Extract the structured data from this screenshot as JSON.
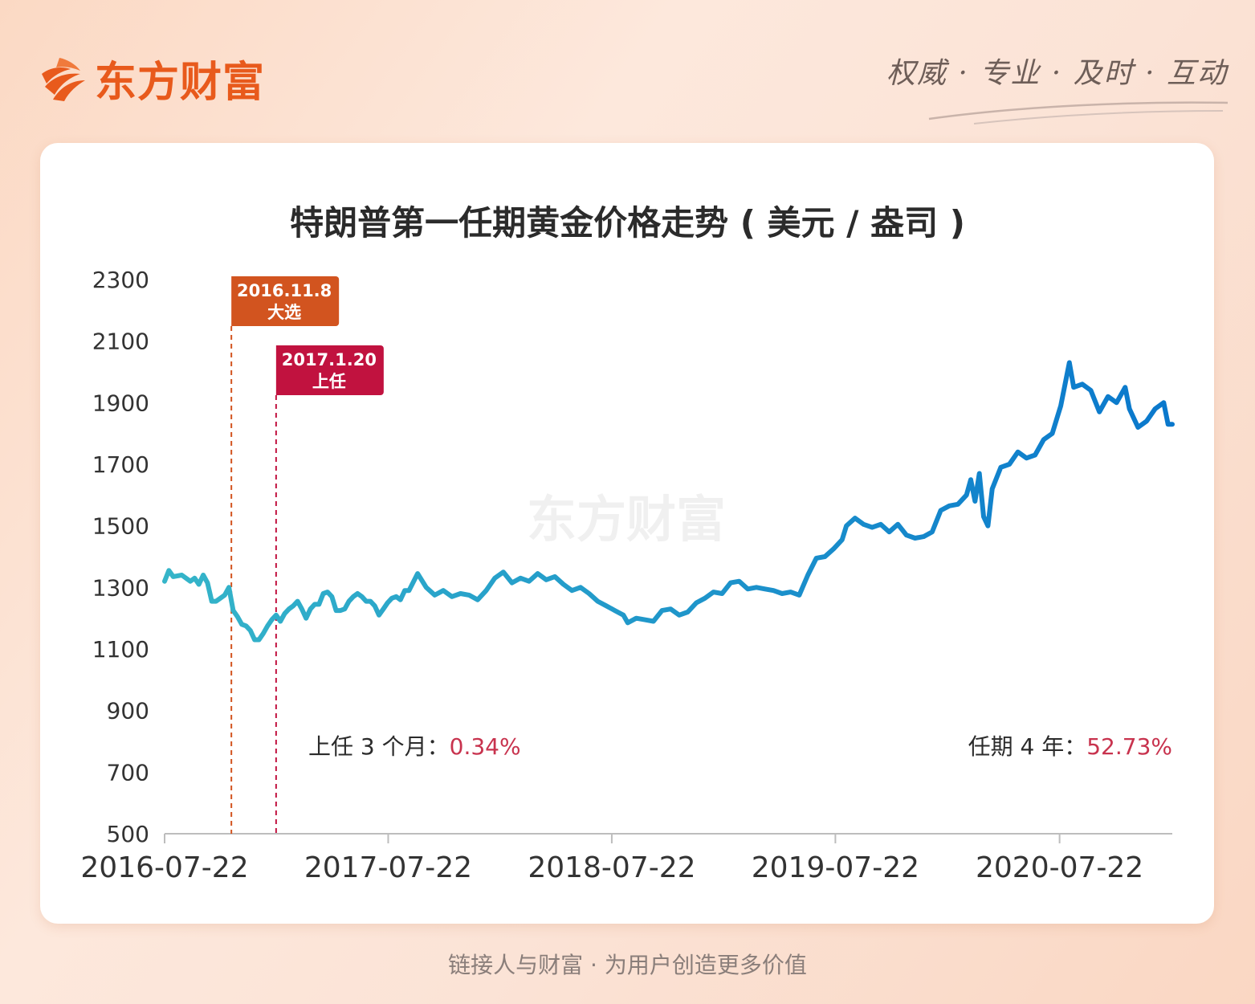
{
  "header": {
    "logo_text": "东方财富",
    "slogan": "权威 · 专业 · 及时 · 互动"
  },
  "footer": {
    "text": "链接人与财富 · 为用户创造更多价值"
  },
  "watermark": "东方财富",
  "colors": {
    "accent": "#e85a1c",
    "line_start": "#35b5c9",
    "line_end": "#0a78cc",
    "election_flag": "#d2541f",
    "inauguration_flag": "#c1123f",
    "highlight_text": "#c8334e"
  },
  "chart_data": {
    "type": "line",
    "title": "特朗普第一任期黄金价格走势 ( 美元 / 盎司 )",
    "xlabel": "",
    "ylabel": "",
    "ylim": [
      500,
      2300
    ],
    "yticks": [
      2300,
      2100,
      1900,
      1700,
      1500,
      1300,
      1100,
      900,
      700,
      500
    ],
    "x_tick_labels": [
      "2016-07-22",
      "2017-07-22",
      "2018-07-22",
      "2019-07-22",
      "2020-07-22"
    ],
    "x_tick_dates": [
      "2016-07-22",
      "2017-07-22",
      "2018-07-22",
      "2019-07-22",
      "2020-07-22"
    ],
    "x_range": [
      "2016-07-22",
      "2021-01-22"
    ],
    "grid": false,
    "series": [
      {
        "x": [
          "2016-07-22",
          "2016-07-29",
          "2016-08-05",
          "2016-08-19",
          "2016-09-02",
          "2016-09-09",
          "2016-09-16",
          "2016-09-23",
          "2016-09-30",
          "2016-10-07",
          "2016-10-14",
          "2016-10-21",
          "2016-10-28",
          "2016-11-04",
          "2016-11-11",
          "2016-11-18",
          "2016-11-25",
          "2016-12-02",
          "2016-12-09",
          "2016-12-16",
          "2016-12-23",
          "2016-12-30",
          "2017-01-06",
          "2017-01-13",
          "2017-01-20",
          "2017-01-27",
          "2017-02-03",
          "2017-02-10",
          "2017-02-17",
          "2017-02-24",
          "2017-03-03",
          "2017-03-10",
          "2017-03-17",
          "2017-03-24",
          "2017-03-31",
          "2017-04-07",
          "2017-04-14",
          "2017-04-21",
          "2017-04-28",
          "2017-05-05",
          "2017-05-12",
          "2017-05-19",
          "2017-05-26",
          "2017-06-02",
          "2017-06-09",
          "2017-06-16",
          "2017-06-23",
          "2017-06-30",
          "2017-07-07",
          "2017-07-14",
          "2017-07-21",
          "2017-07-28",
          "2017-08-04",
          "2017-08-11",
          "2017-08-18",
          "2017-08-25",
          "2017-09-08",
          "2017-09-22",
          "2017-10-06",
          "2017-10-20",
          "2017-11-03",
          "2017-11-17",
          "2017-12-01",
          "2017-12-15",
          "2017-12-29",
          "2018-01-12",
          "2018-01-26",
          "2018-02-09",
          "2018-02-23",
          "2018-03-09",
          "2018-03-23",
          "2018-04-06",
          "2018-04-20",
          "2018-05-04",
          "2018-05-18",
          "2018-06-01",
          "2018-06-15",
          "2018-06-29",
          "2018-07-13",
          "2018-07-27",
          "2018-08-10",
          "2018-08-17",
          "2018-08-31",
          "2018-09-14",
          "2018-09-28",
          "2018-10-12",
          "2018-10-26",
          "2018-11-09",
          "2018-11-23",
          "2018-12-07",
          "2018-12-21",
          "2019-01-04",
          "2019-01-18",
          "2019-02-01",
          "2019-02-15",
          "2019-03-01",
          "2019-03-15",
          "2019-03-29",
          "2019-04-12",
          "2019-04-26",
          "2019-05-10",
          "2019-05-24",
          "2019-06-07",
          "2019-06-21",
          "2019-07-05",
          "2019-07-19",
          "2019-08-02",
          "2019-08-09",
          "2019-08-23",
          "2019-09-06",
          "2019-09-20",
          "2019-10-04",
          "2019-10-18",
          "2019-11-01",
          "2019-11-15",
          "2019-11-29",
          "2019-12-13",
          "2019-12-27",
          "2020-01-10",
          "2020-01-24",
          "2020-02-07",
          "2020-02-21",
          "2020-02-28",
          "2020-03-06",
          "2020-03-13",
          "2020-03-20",
          "2020-03-27",
          "2020-04-03",
          "2020-04-17",
          "2020-05-01",
          "2020-05-15",
          "2020-05-29",
          "2020-06-12",
          "2020-06-26",
          "2020-07-10",
          "2020-07-24",
          "2020-08-07",
          "2020-08-14",
          "2020-08-28",
          "2020-09-11",
          "2020-09-25",
          "2020-10-09",
          "2020-10-23",
          "2020-11-06",
          "2020-11-13",
          "2020-11-27",
          "2020-12-11",
          "2020-12-25",
          "2021-01-08",
          "2021-01-15",
          "2021-01-22"
        ],
        "y": [
          1320,
          1355,
          1335,
          1340,
          1320,
          1330,
          1310,
          1340,
          1315,
          1255,
          1255,
          1265,
          1275,
          1300,
          1225,
          1205,
          1180,
          1175,
          1160,
          1130,
          1130,
          1150,
          1175,
          1195,
          1210,
          1190,
          1215,
          1230,
          1240,
          1255,
          1230,
          1200,
          1230,
          1245,
          1245,
          1280,
          1285,
          1270,
          1225,
          1225,
          1230,
          1255,
          1270,
          1280,
          1270,
          1255,
          1255,
          1240,
          1210,
          1230,
          1250,
          1265,
          1270,
          1260,
          1290,
          1290,
          1345,
          1300,
          1275,
          1290,
          1270,
          1280,
          1275,
          1260,
          1290,
          1330,
          1350,
          1315,
          1330,
          1320,
          1345,
          1325,
          1335,
          1310,
          1290,
          1300,
          1280,
          1255,
          1240,
          1225,
          1210,
          1185,
          1200,
          1195,
          1190,
          1225,
          1230,
          1210,
          1220,
          1250,
          1265,
          1285,
          1280,
          1315,
          1320,
          1295,
          1300,
          1295,
          1290,
          1280,
          1285,
          1275,
          1340,
          1395,
          1400,
          1425,
          1455,
          1500,
          1525,
          1505,
          1495,
          1505,
          1480,
          1505,
          1470,
          1460,
          1465,
          1480,
          1550,
          1565,
          1570,
          1600,
          1650,
          1580,
          1670,
          1530,
          1500,
          1620,
          1690,
          1700,
          1740,
          1720,
          1730,
          1780,
          1800,
          1890,
          2030,
          1950,
          1960,
          1940,
          1870,
          1920,
          1900,
          1950,
          1880,
          1820,
          1840,
          1880,
          1900,
          1830,
          1830
        ]
      }
    ],
    "events": [
      {
        "date": "2016-11-08",
        "label": "2016.11.8",
        "sublabel": "大选"
      },
      {
        "date": "2017-01-20",
        "label": "2017.1.20",
        "sublabel": "上任"
      }
    ],
    "annotations": [
      {
        "label": "上任 3 个月：",
        "value": "0.34%"
      },
      {
        "label": "任期 4 年：",
        "value": "52.73%"
      }
    ]
  }
}
